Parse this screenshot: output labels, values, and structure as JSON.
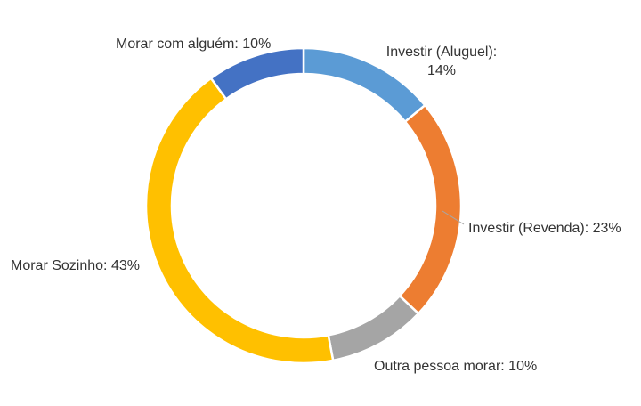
{
  "chart_data": {
    "type": "pie",
    "donut": true,
    "title": "",
    "categories": [
      "Investir (Aluguel)",
      "Investir (Revenda)",
      "Outra pessoa morar",
      "Morar Sozinho",
      "Morar com alguém"
    ],
    "values": [
      14,
      23,
      10,
      43,
      10
    ],
    "unit": "%",
    "colors": [
      "#5B9BD5",
      "#ED7D31",
      "#A5A5A5",
      "#FFC000",
      "#4472C4"
    ],
    "data_labels": [
      [
        "Investir (Aluguel):",
        "14%"
      ],
      [
        "Investir (Revenda): 23%"
      ],
      [
        "Outra pessoa morar: 10%"
      ],
      [
        "Morar Sozinho: 43%"
      ],
      [
        "Morar com alguém: 10%"
      ]
    ],
    "legend": "none"
  }
}
